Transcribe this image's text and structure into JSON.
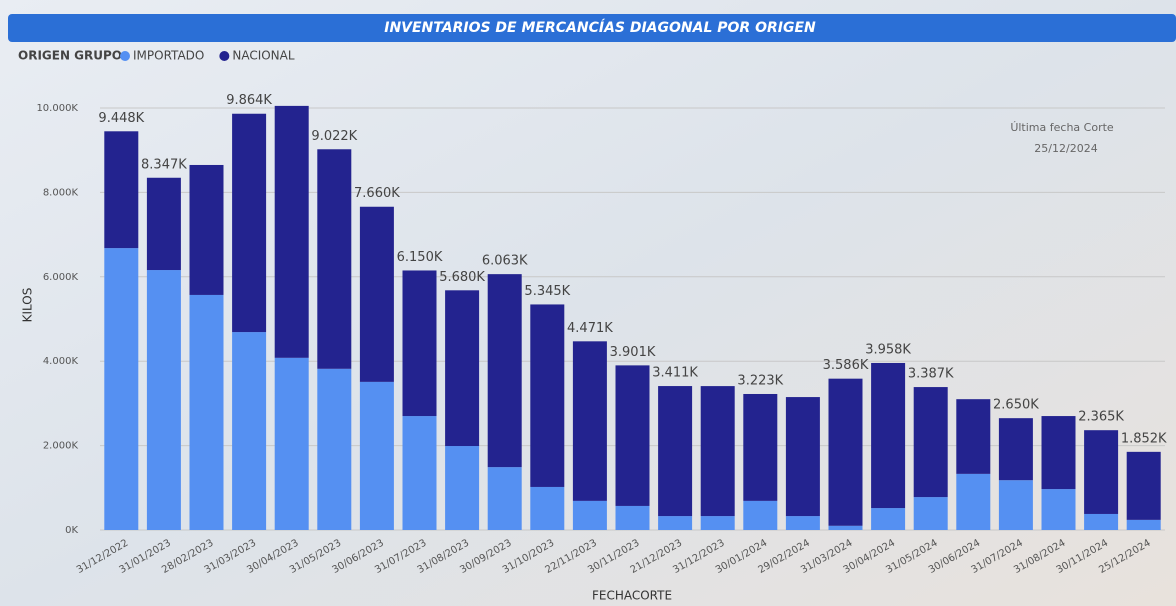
{
  "chart_data": {
    "type": "stacked_bar",
    "title": "INVENTARIOS DE MERCANCÍAS DIAGONAL POR ORIGEN",
    "legend_title": "ORIGEN GRUPO",
    "x_label": "FECHACORTE",
    "y_label": "KILOS",
    "annotation": [
      "Última fecha Corte",
      "25/12/2024"
    ],
    "categories": [
      "31/12/2022",
      "31/01/2023",
      "28/02/2023",
      "31/03/2023",
      "30/04/2023",
      "31/05/2023",
      "30/06/2023",
      "31/07/2023",
      "31/08/2023",
      "30/09/2023",
      "31/10/2023",
      "22/11/2023",
      "30/11/2023",
      "21/12/2023",
      "31/12/2023",
      "30/01/2024",
      "29/02/2024",
      "31/03/2024",
      "30/04/2024",
      "31/05/2024",
      "30/06/2024",
      "31/07/2024",
      "31/08/2024",
      "30/11/2024",
      "25/12/2024"
    ],
    "series": [
      {
        "name": "IMPORTADO",
        "color": "#5590f2",
        "values": [
          6680,
          6160,
          5570,
          4690,
          4080,
          3820,
          3510,
          2700,
          1990,
          1490,
          1020,
          690,
          570,
          330,
          330,
          690,
          330,
          100,
          520,
          780,
          1330,
          1180,
          970,
          380,
          240
        ]
      },
      {
        "name": "NACIONAL",
        "color": "#23238f",
        "values": [
          2768,
          2187,
          3080,
          5174,
          5970,
          5202,
          4150,
          3450,
          3690,
          4573,
          4325,
          3781,
          3331,
          3081,
          3080,
          2533,
          2820,
          3486,
          3438,
          2607,
          1770,
          1470,
          1730,
          1985,
          1612
        ]
      }
    ],
    "total_labels": [
      "9.448K",
      "8.347K",
      null,
      "9.864K",
      null,
      "9.022K",
      "7.660K",
      "6.150K",
      "5.680K",
      "6.063K",
      "5.345K",
      "4.471K",
      "3.901K",
      "3.411K",
      null,
      "3.223K",
      null,
      "3.586K",
      "3.958K",
      "3.387K",
      null,
      "2.650K",
      null,
      "2.365K",
      "1.852K"
    ],
    "ylim": [
      0,
      10000
    ],
    "yticks": [
      {
        "value": 0,
        "label": "0K"
      },
      {
        "value": 2000,
        "label": "2.000K"
      },
      {
        "value": 4000,
        "label": "4.000K"
      },
      {
        "value": 6000,
        "label": "6.000K"
      },
      {
        "value": 8000,
        "label": "8.000K"
      },
      {
        "value": 10000,
        "label": "10.000K"
      }
    ],
    "grid": true
  }
}
